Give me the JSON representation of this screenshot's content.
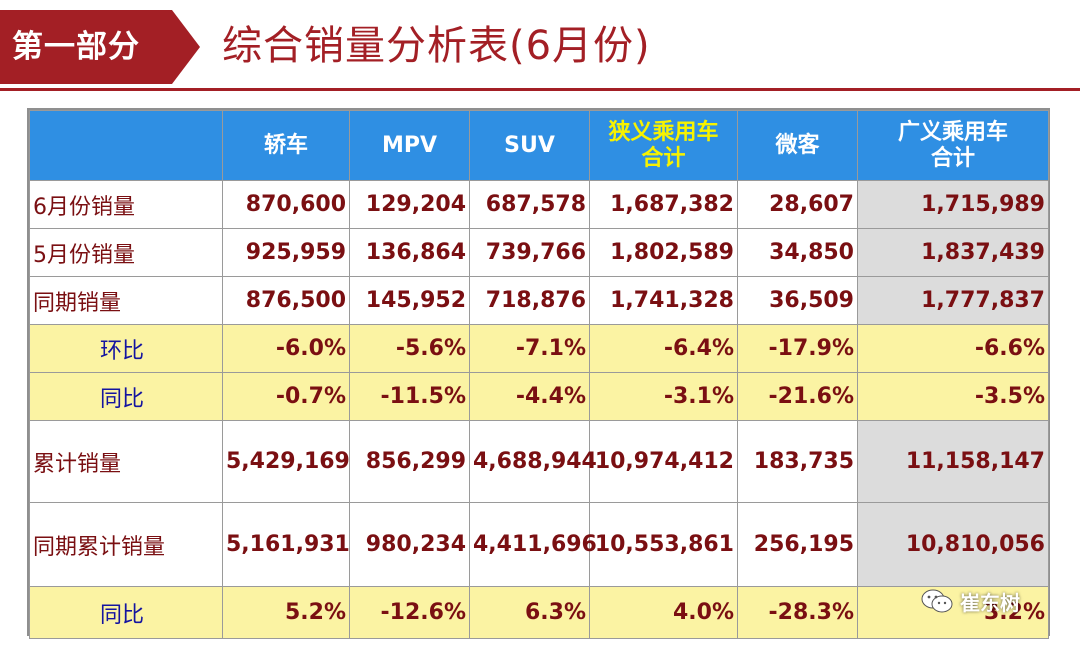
{
  "header": {
    "section_label": "第一部分",
    "title": "综合销量分析表(6月份)"
  },
  "table": {
    "columns": [
      "",
      "轿车",
      "MPV",
      "SUV",
      "狭义乘用车合计",
      "微客",
      "广义乘用车合计"
    ],
    "column_lines": [
      [
        ""
      ],
      [
        "轿车"
      ],
      [
        "MPV"
      ],
      [
        "SUV"
      ],
      [
        "狭义乘用车",
        "合计"
      ],
      [
        "微客"
      ],
      [
        "广义乘用车",
        "合计"
      ]
    ],
    "rows": [
      {
        "label": "6月份销量",
        "values": [
          "870,600",
          "129,204",
          "687,578",
          "1,687,382",
          "28,607",
          "1,715,989"
        ]
      },
      {
        "label": "5月份销量",
        "values": [
          "925,959",
          "136,864",
          "739,766",
          "1,802,589",
          "34,850",
          "1,837,439"
        ]
      },
      {
        "label": "同期销量",
        "values": [
          "876,500",
          "145,952",
          "718,876",
          "1,741,328",
          "36,509",
          "1,777,837"
        ]
      },
      {
        "label": "环比",
        "values": [
          "-6.0%",
          "-5.6%",
          "-7.1%",
          "-6.4%",
          "-17.9%",
          "-6.6%"
        ]
      },
      {
        "label": "同比",
        "values": [
          "-0.7%",
          "-11.5%",
          "-4.4%",
          "-3.1%",
          "-21.6%",
          "-3.5%"
        ]
      },
      {
        "label": "累计销量",
        "values": [
          "5,429,169",
          "856,299",
          "4,688,944",
          "10,974,412",
          "183,735",
          "11,158,147"
        ]
      },
      {
        "label": "同期累计销量",
        "values": [
          "5,161,931",
          "980,234",
          "4,411,696",
          "10,553,861",
          "256,195",
          "10,810,056"
        ]
      },
      {
        "label": "同比",
        "values": [
          "5.2%",
          "-12.6%",
          "6.3%",
          "4.0%",
          "-28.3%",
          "3.2%"
        ]
      }
    ]
  },
  "watermark": {
    "text": "崔东树",
    "icon": "wechat-icon"
  },
  "colors": {
    "brand_red": "#a31f25",
    "header_blue": "#2f8fe3",
    "header_yellow_text": "#f7f200",
    "pct_row_fill": "#fbf3a3",
    "shaded_column": "#dcdcdc",
    "value_text": "#7a0f12",
    "pct_label_text": "#1414a0"
  }
}
